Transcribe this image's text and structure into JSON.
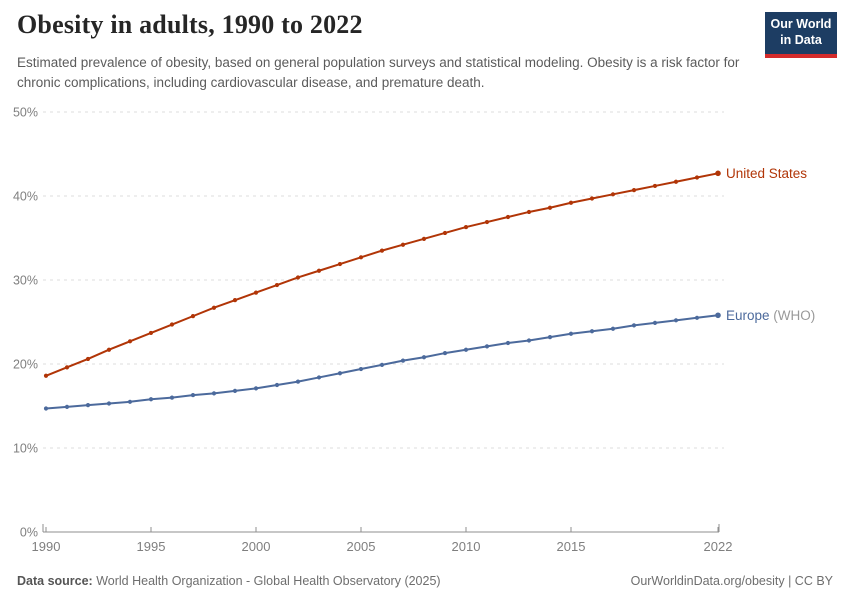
{
  "header": {
    "title": "Obesity in adults, 1990 to 2022",
    "subtitle": "Estimated prevalence of obesity, based on general population surveys and statistical modeling. Obesity is a risk factor for chronic complications, including cardiovascular disease, and premature death."
  },
  "logo": {
    "line1": "Our World",
    "line2": "in Data",
    "bg_color": "#1d3d63",
    "stripe_color": "#d42b2b"
  },
  "footer": {
    "source_label": "Data source:",
    "source_text": " World Health Organization - Global Health Observatory (2025)",
    "right_text": "OurWorldinData.org/obesity | CC BY"
  },
  "chart_data": {
    "type": "line",
    "title": "Obesity in adults, 1990 to 2022",
    "xlabel": "",
    "ylabel": "",
    "xlim": [
      1990,
      2022
    ],
    "ylim": [
      0,
      50
    ],
    "grid": "horizontal-dashed",
    "legend_position": "right-end-labels",
    "x": [
      1990,
      1991,
      1992,
      1993,
      1994,
      1995,
      1996,
      1997,
      1998,
      1999,
      2000,
      2001,
      2002,
      2003,
      2004,
      2005,
      2006,
      2007,
      2008,
      2009,
      2010,
      2011,
      2012,
      2013,
      2014,
      2015,
      2016,
      2017,
      2018,
      2019,
      2020,
      2021,
      2022
    ],
    "x_ticks": [
      1990,
      1995,
      2000,
      2005,
      2010,
      2015,
      2022
    ],
    "x_tick_labels": [
      "1990",
      "1995",
      "2000",
      "2005",
      "2010",
      "2015",
      "2022"
    ],
    "y_ticks": [
      0,
      10,
      20,
      30,
      40,
      50
    ],
    "y_tick_labels": [
      "0%",
      "10%",
      "20%",
      "30%",
      "40%",
      "50%"
    ],
    "series": [
      {
        "name": "United States",
        "label": "United States",
        "label_suffix": "",
        "color": "#b13507",
        "values": [
          18.6,
          19.6,
          20.6,
          21.7,
          22.7,
          23.7,
          24.7,
          25.7,
          26.7,
          27.6,
          28.5,
          29.4,
          30.3,
          31.1,
          31.9,
          32.7,
          33.5,
          34.2,
          34.9,
          35.6,
          36.3,
          36.9,
          37.5,
          38.1,
          38.6,
          39.2,
          39.7,
          40.2,
          40.7,
          41.2,
          41.7,
          42.2,
          42.7
        ]
      },
      {
        "name": "Europe (WHO)",
        "label": "Europe",
        "label_suffix": " (WHO)",
        "color": "#4c6a9c",
        "values": [
          14.7,
          14.9,
          15.1,
          15.3,
          15.5,
          15.8,
          16.0,
          16.3,
          16.5,
          16.8,
          17.1,
          17.5,
          17.9,
          18.4,
          18.9,
          19.4,
          19.9,
          20.4,
          20.8,
          21.3,
          21.7,
          22.1,
          22.5,
          22.8,
          23.2,
          23.6,
          23.9,
          24.2,
          24.6,
          24.9,
          25.2,
          25.5,
          25.8
        ]
      }
    ],
    "colors": {
      "gridline": "#dcdcdc",
      "axis": "#8f8f8f",
      "tick_text": "#7f7f7f",
      "label_suffix_text": "#999999"
    }
  }
}
